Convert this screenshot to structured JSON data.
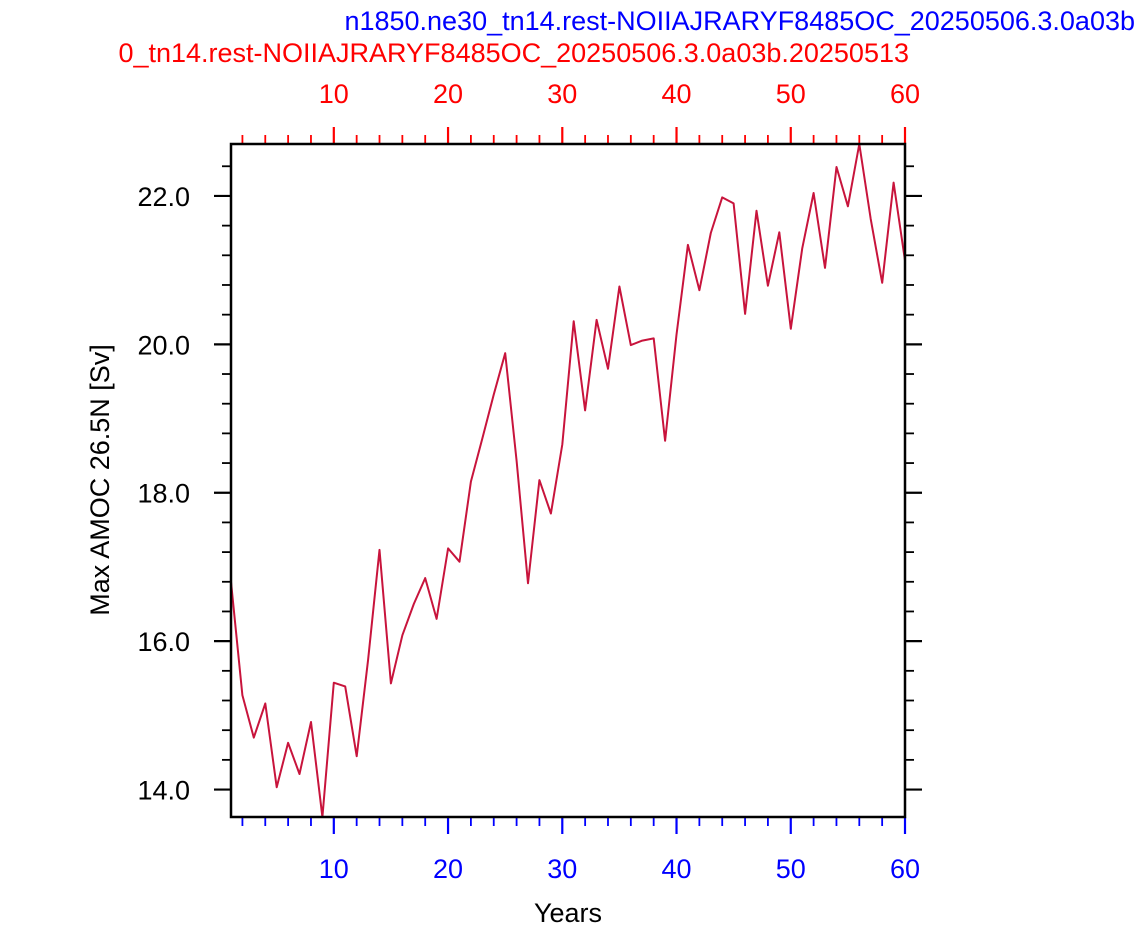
{
  "chart_data": {
    "type": "line",
    "title_top": "n1850.ne30_tn14.rest-NOIIAJRARYF8485OC_20250506.3.0a03b",
    "title_second": "0_tn14.rest-NOIIAJRARYF8485OC_20250506.3.0a03b.20250513",
    "xlabel": "Years",
    "ylabel": "Max AMOC 26.5N [Sv]",
    "xlim": [
      1,
      60
    ],
    "ylim": [
      13.63,
      22.7
    ],
    "x_ticks": [
      10,
      20,
      30,
      40,
      50,
      60
    ],
    "x_tick_labels": [
      "10",
      "20",
      "30",
      "40",
      "50",
      "60"
    ],
    "top_x_tick_labels": [
      "10",
      "20",
      "30",
      "40",
      "50",
      "60"
    ],
    "y_ticks": [
      14,
      16,
      18,
      20,
      22
    ],
    "y_tick_labels": [
      "14.0",
      "16.0",
      "18.0",
      "20.0",
      "22.0"
    ],
    "colors": {
      "series": "#c8143c",
      "top_title": "#0000ff",
      "second_title": "#ff0000",
      "bottom_ticks": "#0000ff",
      "top_ticks": "#ff0000",
      "axes": "#000000"
    },
    "series": [
      {
        "x": [
          1,
          2,
          3,
          4,
          5,
          6,
          7,
          8,
          9,
          10,
          11,
          12,
          13,
          14,
          15,
          16,
          17,
          18,
          19,
          20,
          21,
          22,
          23,
          24,
          25,
          26,
          27,
          28,
          29,
          30,
          31,
          32,
          33,
          34,
          35,
          36,
          37,
          38,
          39,
          40,
          41,
          42,
          43,
          44,
          45,
          46,
          47,
          48,
          49,
          50,
          51,
          52,
          53,
          54,
          55,
          56,
          57,
          58,
          59,
          60
        ],
        "values": [
          16.8,
          15.27,
          14.7,
          15.16,
          14.03,
          14.63,
          14.21,
          14.91,
          13.63,
          15.44,
          15.39,
          14.45,
          15.75,
          17.23,
          15.43,
          16.08,
          16.5,
          16.85,
          16.3,
          17.25,
          17.07,
          18.15,
          18.73,
          19.32,
          19.88,
          18.43,
          16.78,
          18.17,
          17.72,
          18.65,
          20.31,
          19.11,
          20.33,
          19.67,
          20.78,
          19.99,
          20.05,
          20.08,
          18.7,
          20.13,
          21.34,
          20.73,
          21.5,
          21.98,
          21.9,
          20.41,
          21.8,
          20.79,
          21.51,
          20.21,
          21.29,
          22.04,
          21.03,
          22.39,
          21.86,
          22.7,
          21.69,
          20.83,
          22.18,
          21.13
        ]
      }
    ]
  }
}
